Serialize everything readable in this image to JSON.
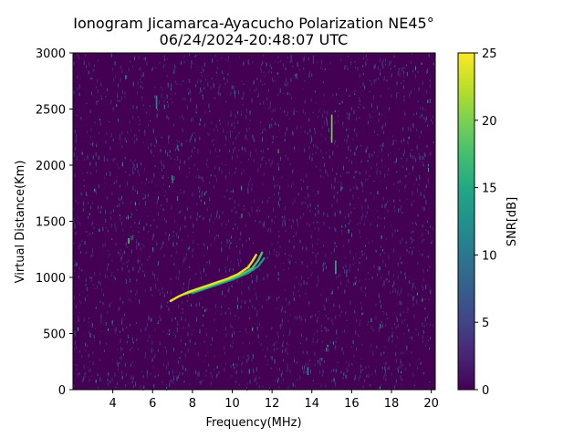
{
  "chart_data": {
    "type": "heatmap",
    "title": "Ionogram Jicamarca-Ayacucho Polarization NE45°",
    "subtitle": "06/24/2024-20:48:07 UTC",
    "xlabel": "Frequency(MHz)",
    "ylabel": "Virtual Distance(Km)",
    "xlim": [
      2.0,
      20.2
    ],
    "ylim": [
      0,
      3000
    ],
    "x_ticks": [
      4,
      6,
      8,
      10,
      12,
      14,
      16,
      18,
      20
    ],
    "y_ticks": [
      0,
      500,
      1000,
      1500,
      2000,
      2500,
      3000
    ],
    "colorbar": {
      "label": "SNR[dB]",
      "min": 0,
      "max": 25,
      "ticks": [
        0,
        5,
        10,
        15,
        20,
        25
      ],
      "colormap": "viridis"
    },
    "grid": false,
    "background_snr_db": 0,
    "echo_traces": [
      {
        "points": [
          {
            "x": 6.9,
            "y": 790
          },
          {
            "x": 7.3,
            "y": 830
          },
          {
            "x": 7.8,
            "y": 870
          },
          {
            "x": 8.3,
            "y": 900
          },
          {
            "x": 8.8,
            "y": 930
          },
          {
            "x": 9.3,
            "y": 960
          },
          {
            "x": 9.8,
            "y": 990
          },
          {
            "x": 10.3,
            "y": 1030
          },
          {
            "x": 10.8,
            "y": 1090
          },
          {
            "x": 11.0,
            "y": 1140
          },
          {
            "x": 11.2,
            "y": 1200
          }
        ],
        "snr_db": 24
      },
      {
        "points": [
          {
            "x": 7.6,
            "y": 850
          },
          {
            "x": 8.5,
            "y": 900
          },
          {
            "x": 9.5,
            "y": 960
          },
          {
            "x": 10.4,
            "y": 1020
          },
          {
            "x": 11.0,
            "y": 1080
          },
          {
            "x": 11.3,
            "y": 1150
          },
          {
            "x": 11.5,
            "y": 1220
          }
        ],
        "snr_db": 18
      },
      {
        "points": [
          {
            "x": 8.0,
            "y": 860
          },
          {
            "x": 9.0,
            "y": 920
          },
          {
            "x": 10.0,
            "y": 980
          },
          {
            "x": 10.8,
            "y": 1040
          },
          {
            "x": 11.3,
            "y": 1100
          },
          {
            "x": 11.6,
            "y": 1170
          }
        ],
        "snr_db": 12
      }
    ],
    "spot_echoes": [
      {
        "x": 4.8,
        "y": 1300,
        "y2": 1350,
        "snr_db": 18
      },
      {
        "x": 6.2,
        "y": 2500,
        "y2": 2620,
        "snr_db": 12
      },
      {
        "x": 15.0,
        "y": 2200,
        "y2": 2450,
        "snr_db": 20
      },
      {
        "x": 15.2,
        "y": 1030,
        "y2": 1150,
        "snr_db": 16
      },
      {
        "x": 14.8,
        "y": 380,
        "y2": 400,
        "snr_db": 15
      },
      {
        "x": 13.8,
        "y": 130,
        "y2": 200,
        "snr_db": 12
      }
    ]
  }
}
